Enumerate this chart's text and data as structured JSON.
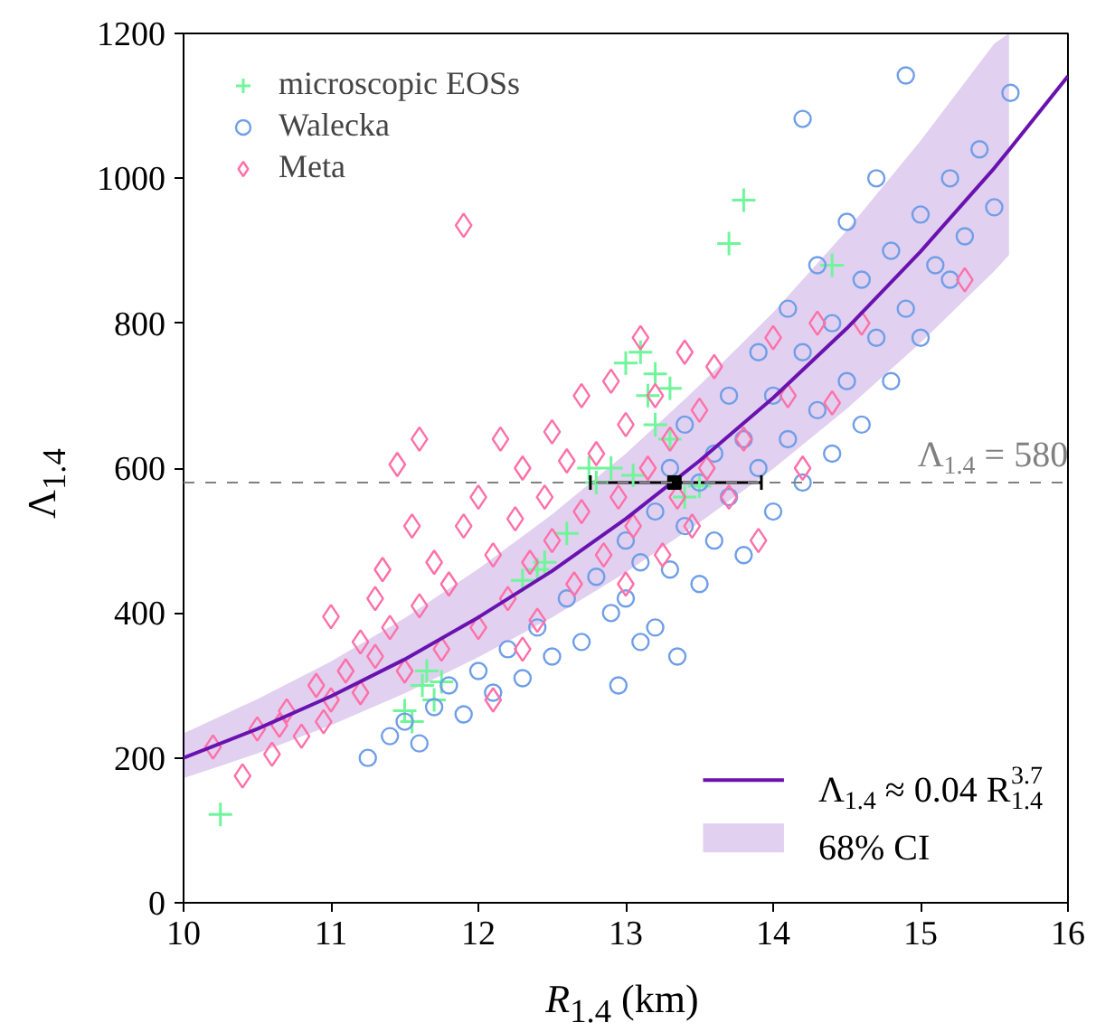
{
  "chart_data": {
    "type": "scatter",
    "xlabel": "R$_{1.4}$ (km)",
    "ylabel": "Λ$_{1.4}$",
    "xlim": [
      10,
      16
    ],
    "ylim": [
      0,
      1200
    ],
    "xticks": [
      10,
      11,
      12,
      13,
      14,
      15,
      16
    ],
    "yticks": [
      0,
      200,
      400,
      600,
      800,
      1000,
      1200
    ],
    "legend": "top left",
    "annotations": [
      "68% CI"
    ],
    "series": [
      {
        "name": "microscopic EOSs",
        "marker": "cross",
        "color": "#6ff59a",
        "x": [
          10.25,
          11.5,
          11.62,
          11.65,
          11.7,
          11.75,
          11.55,
          12.4,
          12.45,
          12.3,
          12.6,
          12.75,
          12.8,
          12.9,
          13.0,
          13.1,
          13.2,
          13.15,
          13.2,
          13.3,
          13.3,
          13.4,
          13.5,
          13.7,
          13.8,
          14.4,
          13.05
        ],
        "values": [
          122,
          265,
          300,
          320,
          280,
          305,
          250,
          460,
          470,
          445,
          510,
          600,
          580,
          600,
          745,
          760,
          730,
          700,
          660,
          710,
          640,
          560,
          575,
          910,
          970,
          880,
          590
        ]
      },
      {
        "name": "Walecka",
        "marker": "circle",
        "color": "#6f9ee8",
        "x": [
          11.25,
          11.4,
          11.5,
          11.6,
          11.7,
          11.8,
          11.9,
          12.0,
          12.1,
          12.2,
          12.3,
          12.4,
          12.5,
          12.6,
          12.7,
          12.8,
          12.9,
          13.0,
          13.0,
          13.1,
          13.2,
          13.2,
          13.3,
          13.3,
          13.4,
          13.4,
          13.5,
          13.5,
          13.6,
          13.6,
          13.7,
          13.7,
          13.8,
          13.8,
          13.9,
          13.9,
          14.0,
          14.0,
          14.1,
          14.1,
          14.2,
          14.2,
          14.3,
          14.3,
          14.4,
          14.4,
          14.5,
          14.5,
          14.6,
          14.6,
          14.7,
          14.7,
          14.8,
          14.8,
          14.9,
          15.0,
          15.0,
          15.1,
          15.2,
          15.2,
          15.3,
          15.4,
          15.5,
          15.61,
          14.9,
          14.2,
          13.35,
          12.95,
          13.1
        ],
        "values": [
          200,
          230,
          250,
          220,
          270,
          300,
          260,
          320,
          290,
          350,
          310,
          380,
          340,
          420,
          360,
          450,
          400,
          500,
          420,
          470,
          540,
          380,
          600,
          460,
          520,
          660,
          440,
          580,
          620,
          500,
          700,
          560,
          480,
          640,
          760,
          600,
          540,
          700,
          820,
          640,
          580,
          760,
          880,
          680,
          620,
          800,
          940,
          720,
          860,
          660,
          1000,
          780,
          900,
          720,
          820,
          950,
          780,
          880,
          1000,
          860,
          920,
          1040,
          960,
          1118,
          1142,
          1082,
          340,
          300,
          360
        ]
      },
      {
        "name": "Meta",
        "marker": "diamond",
        "color": "#ff6fa8",
        "x": [
          10.2,
          10.4,
          10.5,
          10.6,
          10.65,
          10.7,
          10.8,
          10.9,
          10.95,
          11.0,
          11.0,
          11.1,
          11.2,
          11.2,
          11.3,
          11.3,
          11.35,
          11.4,
          11.45,
          11.5,
          11.55,
          11.6,
          11.6,
          11.7,
          11.75,
          11.8,
          11.9,
          11.9,
          12.0,
          12.0,
          12.1,
          12.15,
          12.2,
          12.25,
          12.3,
          12.35,
          12.4,
          12.45,
          12.5,
          12.5,
          12.6,
          12.65,
          12.7,
          12.7,
          12.8,
          12.85,
          12.9,
          12.95,
          13.0,
          13.05,
          13.1,
          13.15,
          13.2,
          13.25,
          13.3,
          13.35,
          13.4,
          13.45,
          13.5,
          13.55,
          13.6,
          13.7,
          13.8,
          13.9,
          14.0,
          14.1,
          14.2,
          14.3,
          14.4,
          14.6,
          15.3,
          12.1,
          12.3,
          13.0
        ],
        "values": [
          215,
          175,
          240,
          205,
          245,
          265,
          230,
          300,
          250,
          395,
          280,
          320,
          290,
          360,
          340,
          420,
          460,
          380,
          605,
          320,
          520,
          640,
          410,
          470,
          350,
          440,
          935,
          520,
          380,
          560,
          480,
          640,
          420,
          530,
          600,
          470,
          390,
          560,
          650,
          500,
          610,
          440,
          700,
          540,
          620,
          480,
          720,
          560,
          660,
          520,
          780,
          600,
          700,
          480,
          640,
          560,
          760,
          520,
          680,
          600,
          740,
          560,
          640,
          500,
          780,
          700,
          600,
          800,
          690,
          800,
          860,
          280,
          350,
          440
        ]
      },
      {
        "name": "Λ$_{1.4}$ ≈ 0.04 R$_{1.4}$$^{3.7}$",
        "type": "line",
        "color": "#6a12b0",
        "x": [
          10,
          10.5,
          11,
          11.5,
          12,
          12.5,
          13,
          13.5,
          14,
          14.5,
          15,
          15.5,
          15.6,
          16
        ],
        "values": [
          200,
          240,
          285,
          336,
          394,
          458,
          530,
          610,
          697,
          793,
          899,
          1014,
          1039,
          1141
        ],
        "lower": [
          172,
          206,
          245,
          289,
          339,
          394,
          456,
          525,
          599,
          682,
          773,
          872,
          894,
          null
        ],
        "upper": [
          234,
          281,
          333,
          393,
          461,
          536,
          620,
          714,
          815,
          928,
          1052,
          1186,
          1200,
          null
        ]
      },
      {
        "marker": "square",
        "color": "#000000",
        "x": [
          13.33
        ],
        "values": [
          580
        ],
        "xerrors": [
          [
            12.76,
            13.92
          ]
        ]
      }
    ],
    "ref_lines": [
      {
        "axis": "y",
        "value": 580,
        "label": "Λ$_{1.4}$ = 580",
        "color": "#808080",
        "line_style": "dashed"
      }
    ]
  }
}
